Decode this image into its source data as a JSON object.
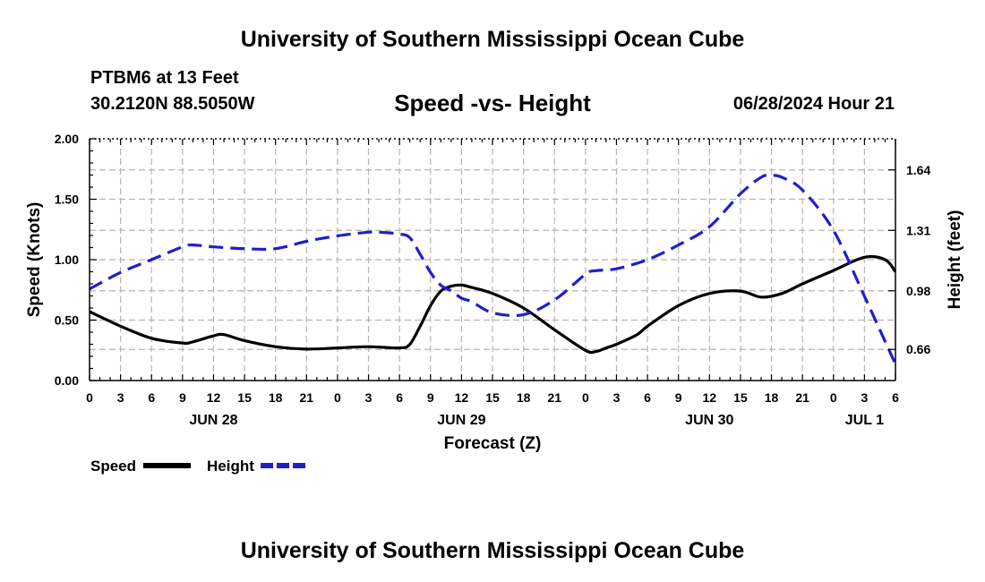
{
  "page": {
    "title_top": "University of Southern Mississippi Ocean Cube",
    "title_bottom": "University of Southern Mississippi Ocean Cube",
    "station_name": "PTBM6 at 13 Feet",
    "station_coords": "30.2120N  88.5050W",
    "subtitle": "Speed -vs- Height",
    "timestamp": "06/28/2024 Hour 21"
  },
  "chart_data": {
    "type": "line",
    "title": "Speed -vs- Height",
    "xlabel": "Forecast (Z)",
    "ylabel": "Speed (Knots)",
    "y2label": "Height (feet)",
    "x_range_hours": [
      0,
      78
    ],
    "ylim": [
      0,
      2.0
    ],
    "y2lim": [
      0.49,
      1.81
    ],
    "x_tick_step_hours": 3,
    "x_tick_labels": [
      "0",
      "3",
      "6",
      "9",
      "12",
      "15",
      "18",
      "21",
      "0",
      "3",
      "6",
      "9",
      "12",
      "15",
      "18",
      "21",
      "0",
      "3",
      "6",
      "9",
      "12",
      "15",
      "18",
      "21",
      "0",
      "3",
      "6"
    ],
    "date_labels": [
      {
        "label": "JUN 28",
        "hour": 12
      },
      {
        "label": "JUN 29",
        "hour": 36
      },
      {
        "label": "JUN 30",
        "hour": 60
      },
      {
        "label": "JUL 1",
        "hour": 75
      }
    ],
    "y_ticks": [
      "0.00",
      "0.50",
      "1.00",
      "1.50",
      "2.00"
    ],
    "y_tick_values": [
      0,
      0.5,
      1.0,
      1.5,
      2.0
    ],
    "y2_ticks": [
      "0.66",
      "0.98",
      "1.31",
      "1.64"
    ],
    "y2_tick_values": [
      0.66,
      0.98,
      1.31,
      1.64
    ],
    "legend": [
      {
        "name": "Speed",
        "color": "#000000",
        "dash": "solid"
      },
      {
        "name": "Height",
        "color": "#1f1fcc",
        "dash": "dashed"
      }
    ],
    "series": [
      {
        "name": "Speed",
        "axis": "left",
        "color": "#000000",
        "dash": "solid",
        "x": [
          0,
          3,
          6,
          9,
          10,
          12,
          13,
          15,
          18,
          21,
          24,
          27,
          30,
          31,
          32,
          33,
          34,
          35,
          36,
          37,
          39,
          42,
          45,
          48,
          49,
          50,
          51,
          53,
          54,
          57,
          60,
          63,
          65,
          67,
          69,
          72,
          75,
          77,
          78
        ],
        "values": [
          0.57,
          0.45,
          0.35,
          0.31,
          0.32,
          0.37,
          0.38,
          0.33,
          0.28,
          0.26,
          0.27,
          0.28,
          0.27,
          0.3,
          0.45,
          0.62,
          0.74,
          0.78,
          0.79,
          0.77,
          0.72,
          0.6,
          0.42,
          0.25,
          0.24,
          0.27,
          0.3,
          0.38,
          0.45,
          0.62,
          0.72,
          0.74,
          0.69,
          0.72,
          0.8,
          0.91,
          1.02,
          1.0,
          0.9
        ]
      },
      {
        "name": "Height",
        "axis": "right",
        "color": "#1f1fcc",
        "dash": "dashed",
        "x": [
          0,
          3,
          6,
          9,
          10,
          12,
          15,
          18,
          21,
          24,
          27,
          28,
          30,
          31,
          32,
          33,
          34,
          35,
          36,
          37,
          39,
          42,
          45,
          48,
          49,
          51,
          54,
          57,
          60,
          63,
          65,
          66,
          67,
          69,
          72,
          75,
          78
        ],
        "values": [
          0.99,
          1.08,
          1.15,
          1.22,
          1.23,
          1.22,
          1.21,
          1.21,
          1.25,
          1.28,
          1.3,
          1.3,
          1.29,
          1.27,
          1.18,
          1.08,
          1.01,
          0.98,
          0.94,
          0.92,
          0.86,
          0.85,
          0.93,
          1.07,
          1.09,
          1.1,
          1.15,
          1.23,
          1.33,
          1.51,
          1.6,
          1.61,
          1.6,
          1.53,
          1.31,
          0.95,
          0.58
        ]
      }
    ]
  }
}
